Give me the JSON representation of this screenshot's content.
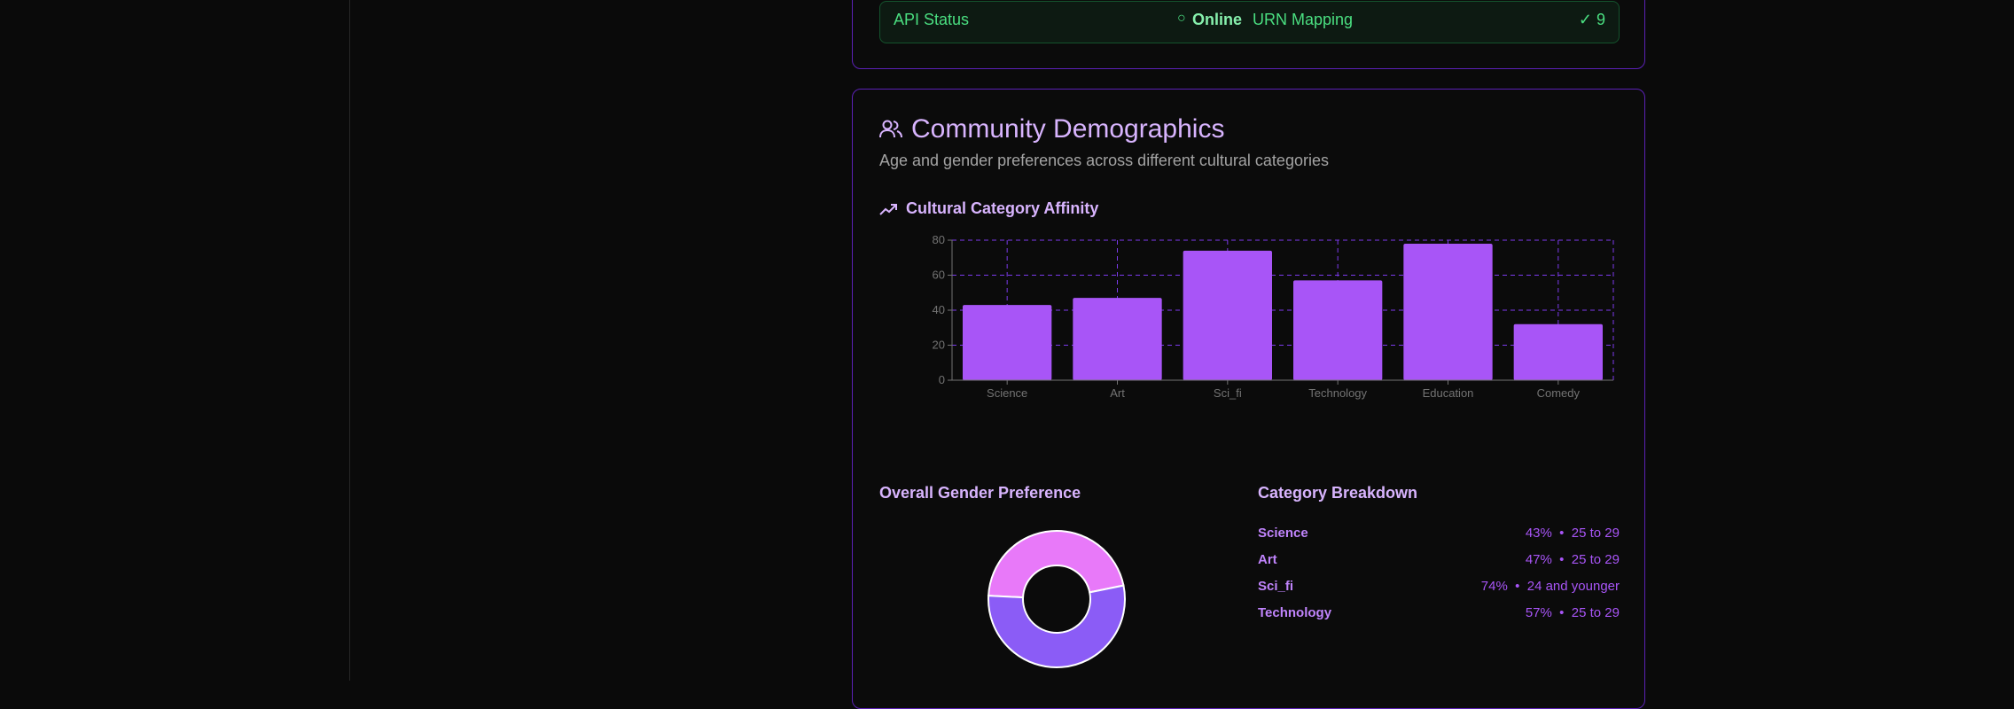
{
  "status": {
    "api_label": "API Status",
    "api_value": "Online",
    "urn_label": "URN Mapping",
    "urn_value": "✓ 9"
  },
  "demographics": {
    "title": "Community Demographics",
    "subtitle": "Age and gender preferences across different cultural categories",
    "chart_title": "Cultural Category Affinity",
    "gender_title": "Overall Gender Preference",
    "breakdown_title": "Category Breakdown",
    "breakdown": [
      {
        "name": "Science",
        "pct": "43%",
        "age": "25 to 29"
      },
      {
        "name": "Art",
        "pct": "47%",
        "age": "25 to 29"
      },
      {
        "name": "Sci_fi",
        "pct": "74%",
        "age": "24 and younger"
      },
      {
        "name": "Technology",
        "pct": "57%",
        "age": "25 to 29"
      }
    ]
  },
  "colors": {
    "bar": "#a855f7",
    "grid": "#7c3aed",
    "donut_top": "#e879f9",
    "donut_bottom": "#8b5cf6"
  },
  "chart_data": {
    "type": "bar",
    "categories": [
      "Science",
      "Art",
      "Sci_fi",
      "Technology",
      "Education",
      "Comedy"
    ],
    "values": [
      43,
      47,
      74,
      57,
      78,
      32
    ],
    "yticks": [
      "0",
      "20",
      "40",
      "60",
      "80"
    ],
    "ylim": [
      0,
      80
    ],
    "grid": true,
    "legend": "none"
  },
  "donut_data": {
    "type": "pie",
    "values": [
      46,
      54
    ]
  }
}
